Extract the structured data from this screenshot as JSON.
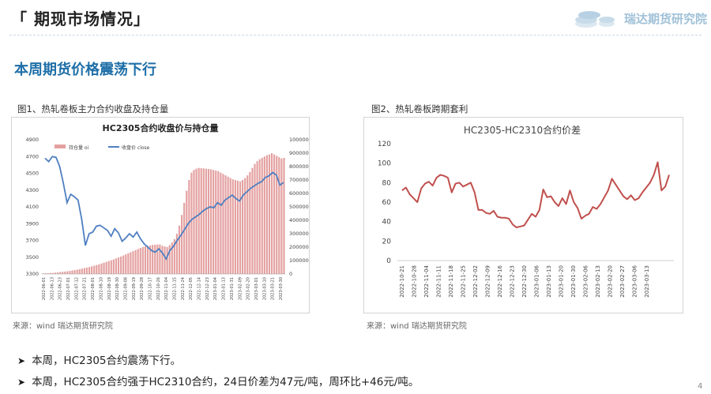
{
  "header": {
    "title": "「 期现市场情况」",
    "brand": "瑞达期货研究院",
    "page_number": "4"
  },
  "section_title": "本周期货价格震荡下行",
  "figures": [
    {
      "caption": "图1、热轧卷板主力合约收盘及持仓量",
      "source": "来源：wind    瑞达期货研究院"
    },
    {
      "caption": "图2、热轧卷板跨期套利",
      "source": "来源：wind    瑞达期货研究院"
    }
  ],
  "bullets": [
    {
      "text": "本周，HC2305合约震荡下行。"
    },
    {
      "text": "本周，HC2305合约强于HC2310合约，24日价差为47元/吨，周环比+46元/吨。"
    }
  ],
  "colors": {
    "title_blue": "#1f6fa8",
    "bar_red": "#e4a0a0",
    "line_blue": "#4f7fc0",
    "spread_red": "#c0504d"
  },
  "chart_data": [
    {
      "type": "bar+line",
      "title": "HC2305合约收盘价与持仓量",
      "legend": {
        "position": "top-left",
        "entries": [
          "持仓量 oi",
          "收盘价 close"
        ]
      },
      "y_left": {
        "ticks": [
          "4900",
          "4700",
          "4500",
          "4300",
          "4100",
          "3900",
          "3700",
          "3500",
          "3300"
        ],
        "range": [
          3300,
          4900
        ]
      },
      "y_right": {
        "ticks": [
          "1000000",
          "900000",
          "800000",
          "700000",
          "600000",
          "500000",
          "400000",
          "300000",
          "200000",
          "100000",
          "0"
        ],
        "range": [
          0,
          1000000
        ]
      },
      "x_ticks": [
        "2022-06-01",
        "2022-06-13",
        "2022-06-23",
        "2022-07-01",
        "2022-07-12",
        "2022-07-21",
        "2022-08-01",
        "2022-08-10",
        "2022-08-19",
        "2022-08-30",
        "2022-09-08",
        "2022-09-19",
        "2022-09-28",
        "2022-10-17",
        "2022-10-26",
        "2022-11-04",
        "2022-11-15",
        "2022-11-24",
        "2022-12-05",
        "2022-12-14",
        "2022-12-23",
        "2023-01-04",
        "2023-01-13",
        "2023-01-31",
        "2023-02-09",
        "2023-02-20",
        "2023-03-01",
        "2023-03-10",
        "2023-03-21",
        "2023-03-30"
      ],
      "series": [
        {
          "name": "持仓量 oi",
          "axis": "right",
          "kind": "bar",
          "color": "#e4a0a0",
          "values": [
            4000,
            5000,
            6000,
            7000,
            8000,
            10000,
            12000,
            14000,
            16000,
            18000,
            20000,
            23000,
            26000,
            29000,
            32000,
            36000,
            40000,
            44000,
            48000,
            52000,
            57000,
            62000,
            67000,
            72000,
            78000,
            84000,
            90000,
            96000,
            102000,
            109000,
            116000,
            123000,
            130000,
            138000,
            146000,
            154000,
            162000,
            170000,
            178000,
            186000,
            194000,
            201000,
            206000,
            210000,
            213000,
            216000,
            218000,
            219000,
            220000,
            210000,
            205000,
            200000,
            215000,
            235000,
            260000,
            300000,
            360000,
            440000,
            530000,
            620000,
            700000,
            755000,
            775000,
            785000,
            790000,
            788000,
            786000,
            784000,
            782000,
            780000,
            775000,
            770000,
            765000,
            755000,
            745000,
            735000,
            725000,
            715000,
            705000,
            700000,
            695000,
            690000,
            700000,
            715000,
            735000,
            760000,
            790000,
            820000,
            840000,
            855000,
            865000,
            875000,
            885000,
            890000,
            900000,
            890000,
            880000,
            870000,
            860000,
            865000
          ]
        },
        {
          "name": "收盘价 close",
          "axis": "left",
          "kind": "line",
          "color": "#4f7fc0",
          "values": [
            4680,
            4640,
            4700,
            4690,
            4580,
            4380,
            4150,
            4250,
            4220,
            4180,
            3950,
            3640,
            3780,
            3800,
            3870,
            3880,
            3850,
            3820,
            3750,
            3840,
            3790,
            3690,
            3730,
            3780,
            3740,
            3800,
            3720,
            3660,
            3620,
            3580,
            3560,
            3600,
            3550,
            3480,
            3580,
            3630,
            3700,
            3760,
            3830,
            3900,
            3950,
            3980,
            4010,
            4050,
            4080,
            4100,
            4090,
            4150,
            4120,
            4180,
            4210,
            4240,
            4200,
            4170,
            4240,
            4280,
            4320,
            4350,
            4380,
            4400,
            4450,
            4470,
            4510,
            4480,
            4360,
            4390
          ]
        }
      ]
    },
    {
      "type": "line",
      "title": "HC2305-HC2310合约价差",
      "y_ticks": [
        "120",
        "100",
        "80",
        "60",
        "40",
        "20",
        "0"
      ],
      "ylim": [
        0,
        120
      ],
      "x_ticks": [
        "2022-10-21",
        "2022-10-28",
        "2022-11-04",
        "2022-11-11",
        "2022-11-18",
        "2022-11-25",
        "2022-12-02",
        "2022-12-09",
        "2022-12-16",
        "2022-12-23",
        "2022-12-30",
        "2023-01-06",
        "2023-01-13",
        "2023-01-20",
        "2023-01-30",
        "2023-02-06",
        "2023-02-13",
        "2023-02-20",
        "2023-02-27",
        "2023-03-06",
        "2023-03-13"
      ],
      "series": [
        {
          "name": "HC2305-HC2310",
          "color": "#c0504d",
          "values": [
            72,
            75,
            68,
            64,
            60,
            74,
            79,
            81,
            77,
            85,
            88,
            87,
            85,
            70,
            79,
            80,
            76,
            78,
            80,
            70,
            52,
            52,
            49,
            48,
            51,
            45,
            44,
            44,
            43,
            37,
            34,
            35,
            36,
            42,
            48,
            45,
            52,
            73,
            65,
            66,
            60,
            56,
            64,
            58,
            72,
            60,
            54,
            43,
            46,
            48,
            55,
            53,
            58,
            65,
            72,
            84,
            78,
            72,
            66,
            63,
            67,
            62,
            64,
            70,
            75,
            80,
            88,
            101,
            72,
            76,
            88
          ]
        }
      ]
    }
  ]
}
